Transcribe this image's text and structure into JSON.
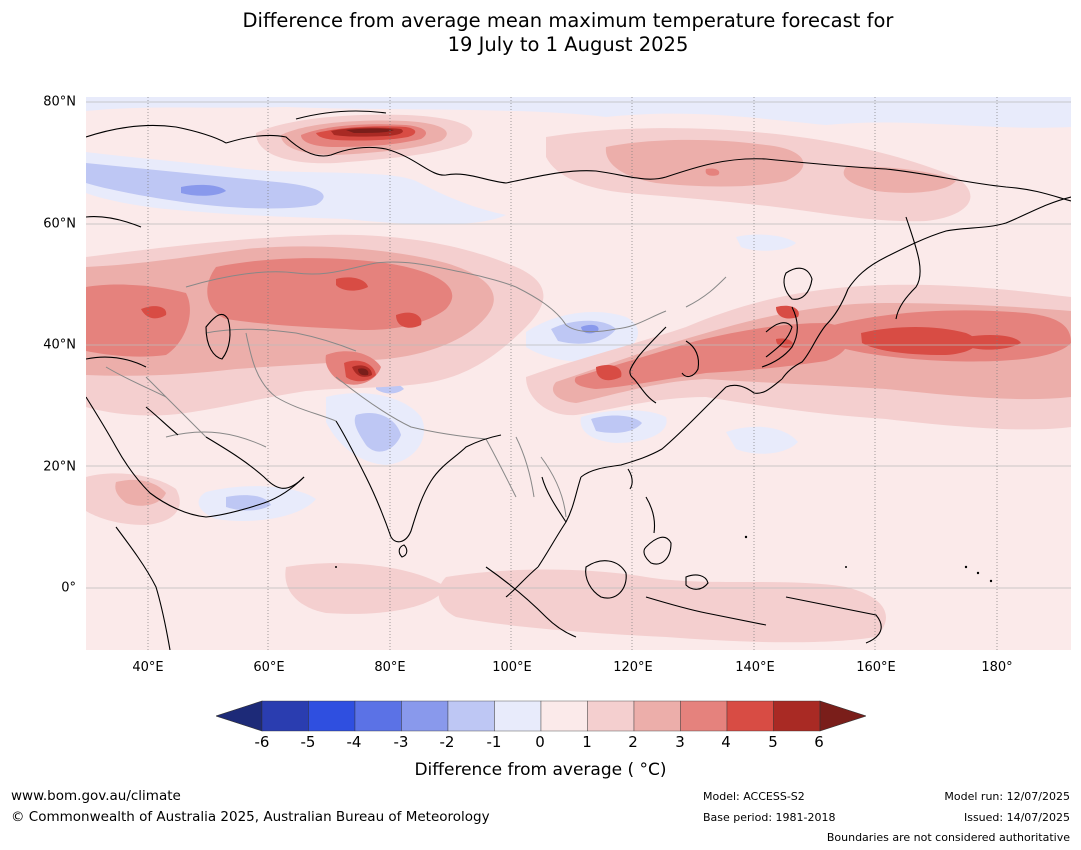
{
  "title_line1": "Difference from average mean maximum temperature forecast for",
  "title_line2": "19 July to 1 August 2025",
  "map": {
    "lat_labels": [
      "80°N",
      "60°N",
      "40°N",
      "20°N",
      "0°"
    ],
    "lon_labels": [
      "40°E",
      "60°E",
      "80°E",
      "100°E",
      "120°E",
      "140°E",
      "160°E",
      "180°"
    ]
  },
  "legend": {
    "ticks": [
      "-6",
      "-5",
      "-4",
      "-3",
      "-2",
      "-1",
      "0",
      "1",
      "2",
      "3",
      "4",
      "5",
      "6"
    ],
    "colors": [
      "#1d2a78",
      "#2a3db0",
      "#2f4fe0",
      "#5b72e6",
      "#8999ec",
      "#bec7f4",
      "#e8ebfb",
      "#fbeaea",
      "#f4cfcf",
      "#ecaeaa",
      "#e5827d",
      "#d84c44",
      "#a92a24",
      "#7a1e1a"
    ],
    "label": "Difference from average ( °C)"
  },
  "footer": {
    "website": "www.bom.gov.au/climate",
    "copyright": "© Commonwealth of Australia 2025, Australian Bureau of Meteorology",
    "model": "Model: ACCESS-S2",
    "base_period": "Base period: 1981-2018",
    "model_run": "Model run: 12/07/2025",
    "issued": "Issued: 14/07/2025",
    "boundaries": "Boundaries are not considered authoritative"
  }
}
